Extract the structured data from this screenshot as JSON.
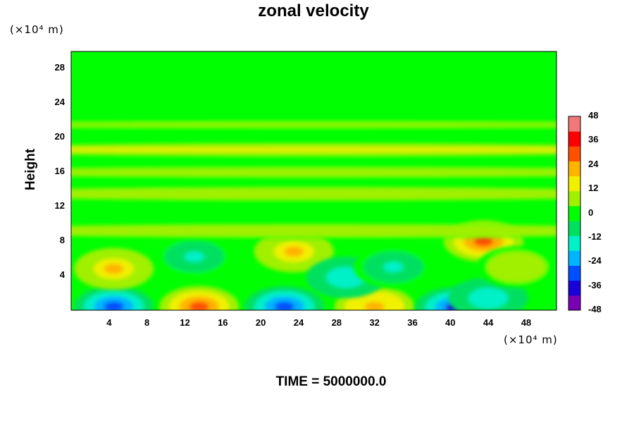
{
  "chart_data": {
    "type": "heatmap",
    "title": "zonal velocity",
    "ylabel": "Height",
    "xlabel": "",
    "y_unit": "(×10⁴ m)",
    "x_unit": "(×10⁴ m)",
    "xlim": [
      0,
      51.2
    ],
    "ylim": [
      0,
      30
    ],
    "x_ticks": [
      "4",
      "8",
      "12",
      "16",
      "20",
      "24",
      "28",
      "32",
      "36",
      "40",
      "44",
      "48"
    ],
    "y_ticks": [
      "4",
      "8",
      "12",
      "16",
      "20",
      "24",
      "28"
    ],
    "colorbar": {
      "range": [
        -48,
        48
      ],
      "ticks": [
        "48",
        "36",
        "24",
        "12",
        "0",
        "-12",
        "-24",
        "-36",
        "-48"
      ],
      "colors": [
        "#7a00b4",
        "#1a00d8",
        "#0050ff",
        "#00b4ff",
        "#00f0c8",
        "#00e060",
        "#00ff00",
        "#a0f000",
        "#f0f000",
        "#ffb400",
        "#ff5000",
        "#ff0000",
        "#f07878"
      ]
    },
    "background_value": 0,
    "features": [
      {
        "x": 4.5,
        "y": 0.4,
        "value": -30
      },
      {
        "x": 13.5,
        "y": 0.4,
        "value": 26
      },
      {
        "x": 22.5,
        "y": 0.4,
        "value": -26
      },
      {
        "x": 32.0,
        "y": 0.4,
        "value": 24
      },
      {
        "x": 40.5,
        "y": 0.3,
        "value": -34
      },
      {
        "x": 44.0,
        "y": 1.4,
        "value": -18
      },
      {
        "x": 4.5,
        "y": 4.8,
        "value": 22
      },
      {
        "x": 13.0,
        "y": 6.2,
        "value": -12
      },
      {
        "x": 23.5,
        "y": 6.8,
        "value": 20
      },
      {
        "x": 29.0,
        "y": 3.8,
        "value": -18
      },
      {
        "x": 34.0,
        "y": 5.0,
        "value": -12
      },
      {
        "x": 43.5,
        "y": 8.0,
        "value": 26
      },
      {
        "x": 47.0,
        "y": 5.0,
        "value": 8
      },
      {
        "x": 25.6,
        "y": 9.2,
        "value": 8
      },
      {
        "x": 25.6,
        "y": 13.5,
        "value": 8
      },
      {
        "x": 25.6,
        "y": 16.0,
        "value": 6
      },
      {
        "x": 25.6,
        "y": 18.6,
        "value": 12
      },
      {
        "x": 25.6,
        "y": 21.5,
        "value": 4
      }
    ],
    "footer": "TIME = 5000000.0"
  }
}
